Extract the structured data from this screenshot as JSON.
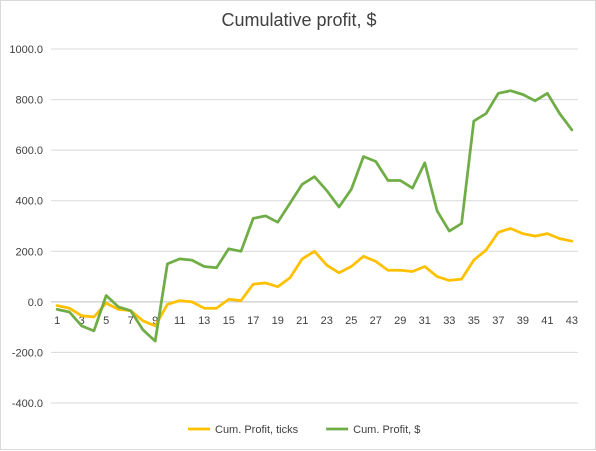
{
  "chart_data": {
    "type": "line",
    "title": "Cumulative profit, $",
    "xlabel": "",
    "ylabel": "",
    "x": [
      1,
      2,
      3,
      4,
      5,
      6,
      7,
      8,
      9,
      10,
      11,
      12,
      13,
      14,
      15,
      16,
      17,
      18,
      19,
      20,
      21,
      22,
      23,
      24,
      25,
      26,
      27,
      28,
      29,
      30,
      31,
      32,
      33,
      34,
      35,
      36,
      37,
      38,
      39,
      40,
      41,
      42,
      43
    ],
    "x_tick_labels": [
      "1",
      "3",
      "5",
      "7",
      "9",
      "11",
      "13",
      "15",
      "17",
      "19",
      "21",
      "23",
      "25",
      "27",
      "29",
      "31",
      "33",
      "35",
      "37",
      "39",
      "41",
      "43"
    ],
    "ylim": [
      -400,
      1000
    ],
    "y_tick_labels": [
      "1000.0",
      "800.0",
      "600.0",
      "400.0",
      "200.0",
      "0.0",
      "-200.0",
      "-400.0"
    ],
    "grid": "horizontal",
    "legend": "bottom",
    "series": [
      {
        "name": "Cum. Profit, ticks",
        "color": "#ffc000",
        "values": [
          -15,
          -25,
          -55,
          -60,
          -5,
          -30,
          -35,
          -75,
          -95,
          -10,
          5,
          0,
          -25,
          -25,
          10,
          5,
          70,
          75,
          60,
          95,
          170,
          200,
          145,
          115,
          140,
          180,
          160,
          125,
          125,
          120,
          140,
          100,
          85,
          90,
          165,
          205,
          275,
          290,
          270,
          260,
          270,
          250,
          240
        ]
      },
      {
        "name": "Cum. Profit, $",
        "color": "#70ad47",
        "values": [
          -30,
          -40,
          -95,
          -115,
          25,
          -20,
          -35,
          -110,
          -155,
          150,
          170,
          165,
          140,
          135,
          210,
          200,
          330,
          340,
          315,
          390,
          465,
          495,
          440,
          375,
          445,
          575,
          555,
          480,
          480,
          450,
          550,
          360,
          280,
          310,
          715,
          745,
          825,
          835,
          820,
          795,
          825,
          745,
          680
        ]
      }
    ]
  }
}
